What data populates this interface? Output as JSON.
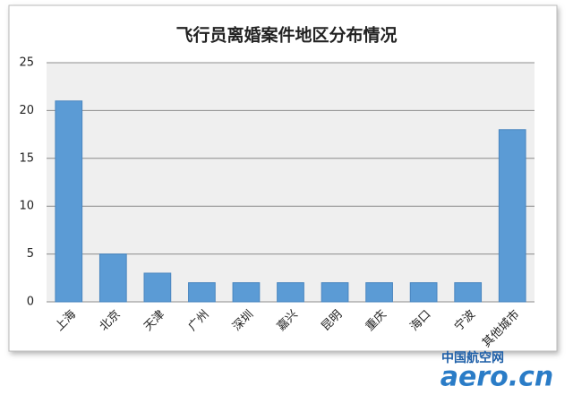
{
  "chart_data": {
    "type": "bar",
    "title": "飞行员离婚案件地区分布情况",
    "categories": [
      "上海",
      "北京",
      "天津",
      "广州",
      "深圳",
      "嘉兴",
      "昆明",
      "重庆",
      "海口",
      "宁波",
      "其他城市"
    ],
    "values": [
      21,
      5,
      3,
      2,
      2,
      2,
      2,
      2,
      2,
      2,
      18
    ],
    "color": "#5b9bd5",
    "ylim": [
      0,
      25
    ],
    "yticks": [
      0,
      5,
      10,
      15,
      20,
      25
    ],
    "grid": true
  },
  "watermark": {
    "site": "中国航空网",
    "logo": "aero.cn"
  }
}
